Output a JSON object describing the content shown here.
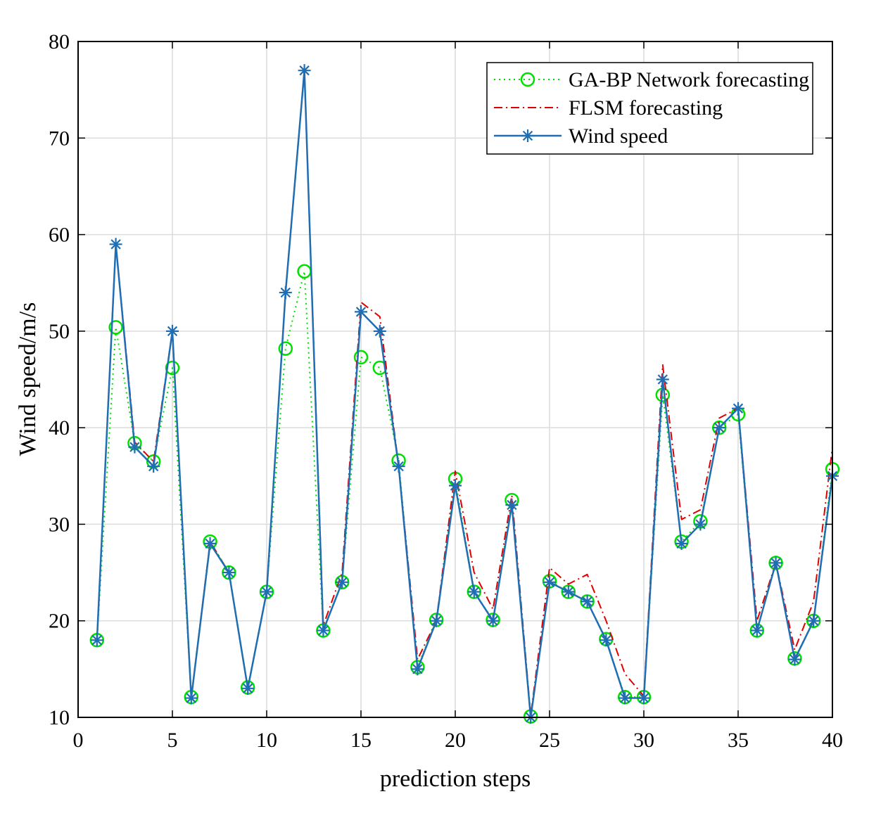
{
  "chart_data": {
    "type": "line",
    "title": "",
    "xlabel": "prediction steps",
    "ylabel": "Wind speed/m/s",
    "xlim": [
      0,
      40
    ],
    "ylim": [
      10,
      80
    ],
    "xticks": [
      0,
      5,
      10,
      15,
      20,
      25,
      30,
      35,
      40
    ],
    "yticks": [
      10,
      20,
      30,
      40,
      50,
      60,
      70,
      80
    ],
    "grid": true,
    "legend_position": "top-right",
    "x": [
      1,
      2,
      3,
      4,
      5,
      6,
      7,
      8,
      9,
      10,
      11,
      12,
      13,
      14,
      15,
      16,
      17,
      18,
      19,
      20,
      21,
      22,
      23,
      24,
      25,
      26,
      27,
      28,
      29,
      30,
      31,
      32,
      33,
      34,
      35,
      36,
      37,
      38,
      39,
      40
    ],
    "series": [
      {
        "name": "GA-BP Network forecasting",
        "style": "dotted",
        "marker": "circle",
        "color": "#00e000",
        "values": [
          18,
          50.4,
          38.4,
          36.5,
          46.2,
          12.1,
          28.2,
          25,
          13.1,
          23,
          48.2,
          56.2,
          19,
          24,
          47.3,
          46.2,
          36.6,
          15.2,
          20.1,
          34.7,
          23,
          20.1,
          32.5,
          10.1,
          24.1,
          23,
          22,
          18.1,
          12.1,
          12.1,
          43.4,
          28.2,
          30.3,
          40,
          41.4,
          19,
          26,
          16.1,
          20,
          35.7
        ]
      },
      {
        "name": "FLSM  forecasting",
        "style": "dashdot",
        "marker": "none",
        "color": "#e00000",
        "values": [
          18,
          59,
          38.5,
          36.5,
          50,
          12,
          28.2,
          25,
          13,
          23,
          54,
          77,
          19.5,
          25,
          53,
          51.5,
          36,
          16,
          20,
          35.5,
          25,
          21.2,
          33,
          10.2,
          25.5,
          23.8,
          24.8,
          20,
          14.5,
          12.2,
          46.5,
          30.5,
          31.5,
          41,
          42,
          20,
          26,
          17,
          22,
          38
        ]
      },
      {
        "name": "Wind speed",
        "style": "solid",
        "marker": "asterisk",
        "color": "#1f6eb4",
        "values": [
          18,
          59,
          38,
          36,
          50,
          12,
          28,
          25,
          13,
          23,
          54,
          77,
          19,
          24,
          52,
          50,
          36,
          15,
          20,
          34,
          23,
          20,
          32,
          10,
          24,
          23,
          22,
          18,
          12,
          12,
          45,
          28,
          30,
          40,
          42,
          19,
          26,
          16,
          20,
          35
        ]
      }
    ]
  }
}
